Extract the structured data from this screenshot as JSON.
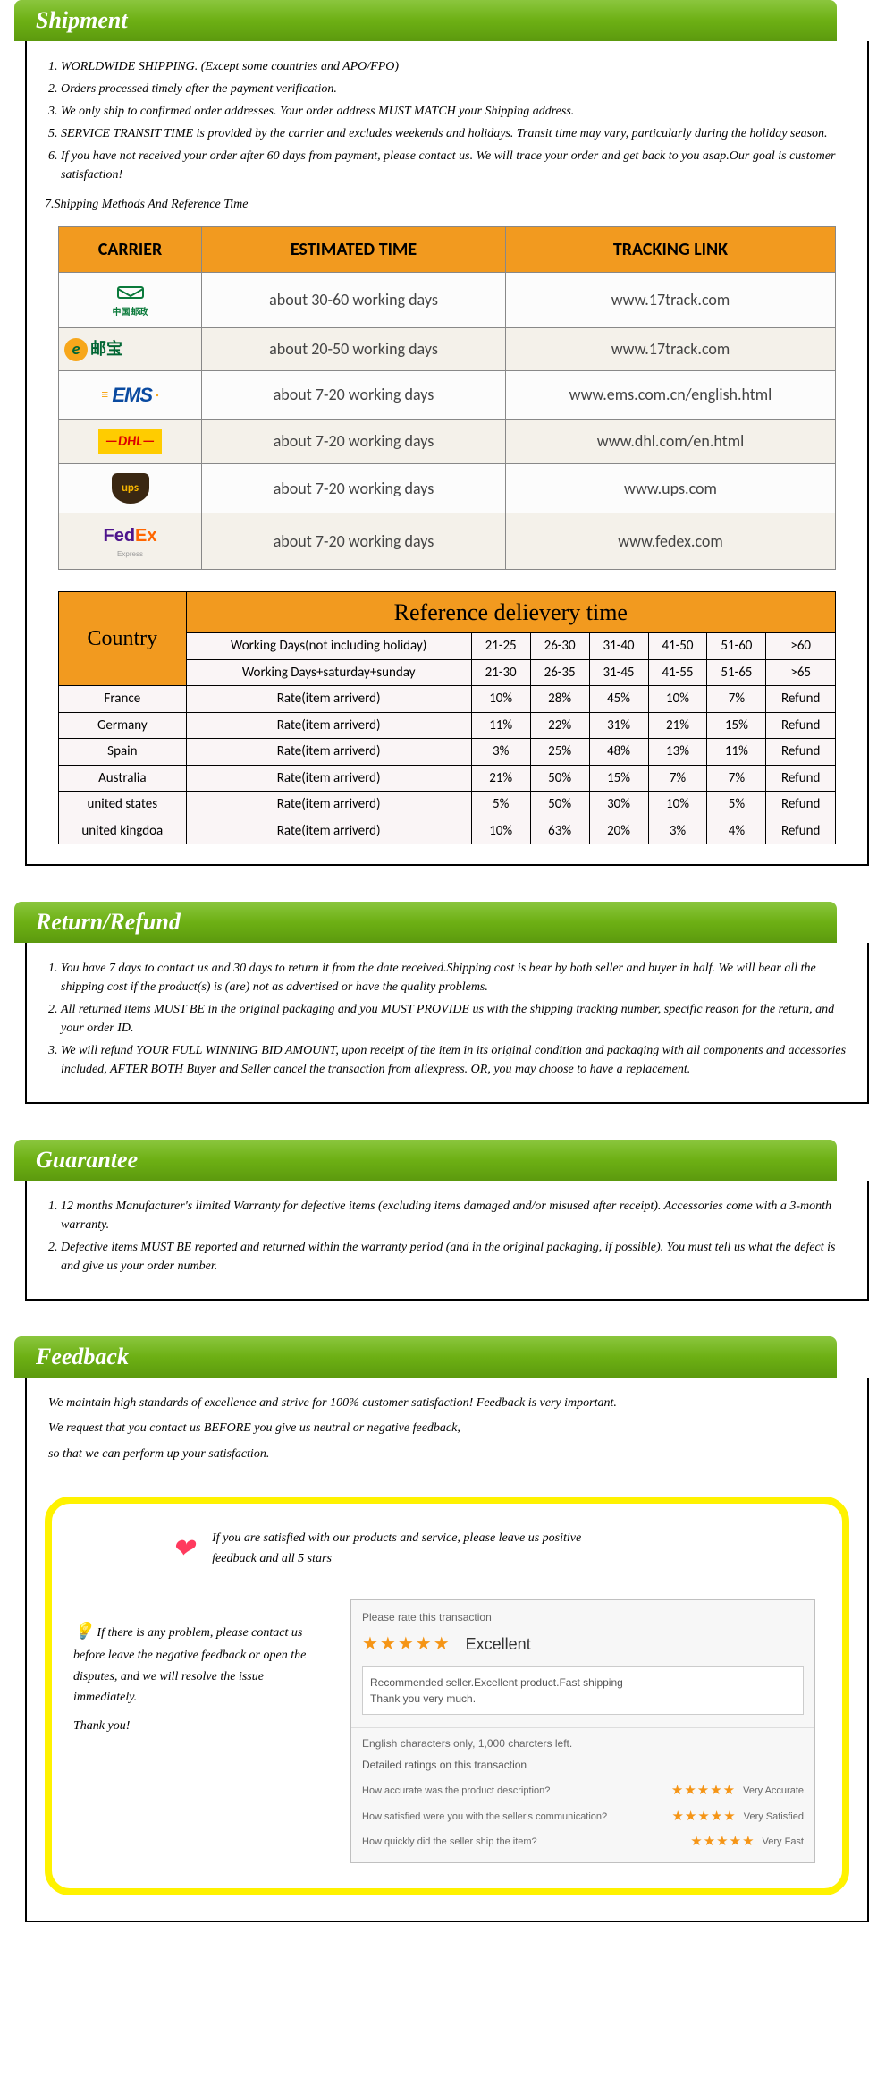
{
  "sections": {
    "shipment": {
      "title": "Shipment",
      "items": [
        "WORLDWIDE SHIPPING. (Except some countries and APO/FPO)",
        "Orders processed timely after the payment verification.",
        "We only ship to confirmed order addresses. Your order address MUST MATCH your Shipping address.",
        "SERVICE TRANSIT TIME is provided by the carrier and excludes weekends and holidays. Transit time may vary, particularly during the holiday season.",
        "If you have not received your order after 60 days from payment, please contact us. We will trace your order and get back to you asap.Our goal is customer satisfaction!"
      ],
      "methods_line": "7.Shipping Methods And Reference Time",
      "carrier_table": {
        "headers": [
          "CARRIER",
          "ESTIMATED TIME",
          "TRACKING LINK"
        ],
        "rows": [
          {
            "carrier": "中国邮政",
            "carrier_type": "chinapost",
            "time": "about 30-60 working days",
            "link": "www.17track.com"
          },
          {
            "carrier": "e邮宝",
            "carrier_type": "eyoubao",
            "time": "about 20-50 working days",
            "link": "www.17track.com"
          },
          {
            "carrier": "EMS",
            "carrier_type": "ems",
            "time": "about 7-20 working days",
            "link": "www.ems.com.cn/english.html"
          },
          {
            "carrier": "DHL",
            "carrier_type": "dhl",
            "time": "about 7-20 working days",
            "link": "www.dhl.com/en.html"
          },
          {
            "carrier": "ups",
            "carrier_type": "ups",
            "time": "about 7-20 working days",
            "link": "www.ups.com"
          },
          {
            "carrier": "FedEx",
            "carrier_type": "fedex",
            "time": "about 7-20 working days",
            "link": "www.fedex.com"
          }
        ]
      },
      "delivery_table": {
        "title": "Reference delievery time",
        "country_label": "Country",
        "row1_label": "Working Days(not including holiday)",
        "row1_cols": [
          "21-25",
          "26-30",
          "31-40",
          "41-50",
          "51-60",
          ">60"
        ],
        "row2_label": "Working Days+saturday+sunday",
        "row2_cols": [
          "21-30",
          "26-35",
          "31-45",
          "41-55",
          "51-65",
          ">65"
        ],
        "countries": [
          {
            "name": "France",
            "label": "Rate(item arriverd)",
            "vals": [
              "10%",
              "28%",
              "45%",
              "10%",
              "7%",
              "Refund"
            ]
          },
          {
            "name": "Germany",
            "label": "Rate(item arriverd)",
            "vals": [
              "11%",
              "22%",
              "31%",
              "21%",
              "15%",
              "Refund"
            ]
          },
          {
            "name": "Spain",
            "label": "Rate(item arriverd)",
            "vals": [
              "3%",
              "25%",
              "48%",
              "13%",
              "11%",
              "Refund"
            ]
          },
          {
            "name": "Australia",
            "label": "Rate(item arriverd)",
            "vals": [
              "21%",
              "50%",
              "15%",
              "7%",
              "7%",
              "Refund"
            ]
          },
          {
            "name": "united states",
            "label": "Rate(item arriverd)",
            "vals": [
              "5%",
              "50%",
              "30%",
              "10%",
              "5%",
              "Refund"
            ]
          },
          {
            "name": "united kingdoa",
            "label": "Rate(item arriverd)",
            "vals": [
              "10%",
              "63%",
              "20%",
              "3%",
              "4%",
              "Refund"
            ]
          }
        ]
      }
    },
    "return": {
      "title": "Return/Refund",
      "items": [
        "You have 7 days to contact us and 30 days to return it from the date received.Shipping cost is bear by both seller and buyer in half. We will bear all the shipping cost if the product(s) is (are) not as advertised or have the quality problems.",
        "All returned items MUST BE in the original packaging and you MUST PROVIDE us with the shipping tracking number, specific reason for the return, and your order ID.",
        "We will refund YOUR FULL WINNING BID AMOUNT, upon receipt of the item in its original condition and packaging with all components and accessories included, AFTER BOTH Buyer and Seller cancel the transaction from aliexpress. OR, you may choose to have a replacement."
      ]
    },
    "guarantee": {
      "title": "Guarantee",
      "items": [
        "12 months Manufacturer's limited Warranty for defective items (excluding items damaged and/or misused after receipt). Accessories come with a 3-month warranty.",
        "Defective items MUST BE reported and returned within the warranty period (and in the original packaging, if possible). You must tell us what the defect is and give us your order number."
      ]
    },
    "feedback": {
      "title": "Feedback",
      "intro": [
        "We maintain high standards of excellence and strive for 100% customer satisfaction! Feedback is very important.",
        "We request that you contact us BEFORE you give us neutral or negative feedback,",
        "so that we can perform up your satisfaction."
      ],
      "positive_text": "If you are satisfied with our products and service, please leave us positive feedback and all 5 stars",
      "problem_text": "If there is any problem, please contact us before leave the negative feedback or open the disputes, and we will resolve the issue immediately.",
      "thanks": "Thank you!",
      "rating_card": {
        "header": "Please rate this transaction",
        "stars": "★★★★★",
        "excellent": "Excellent",
        "comment_l1": "Recommended seller.Excellent product.Fast shipping",
        "comment_l2": "Thank you very much.",
        "chars_left": "English characters only, 1,000 charcters left.",
        "detail_title": "Detailed ratings on this transaction",
        "rows": [
          {
            "q": "How accurate was the product description?",
            "label": "Very Accurate"
          },
          {
            "q": "How satisfied were you with the seller's communication?",
            "label": "Very Satisfied"
          },
          {
            "q": "How quickly did the seller ship the item?",
            "label": "Very Fast"
          }
        ]
      }
    }
  },
  "colors": {
    "header_top": "#8bc63e",
    "header_bot": "#5c9a0e",
    "accent_orange": "#f29a1f",
    "yellow_border": "#fff200",
    "star": "#f59516",
    "heart": "#ff3a5e"
  }
}
